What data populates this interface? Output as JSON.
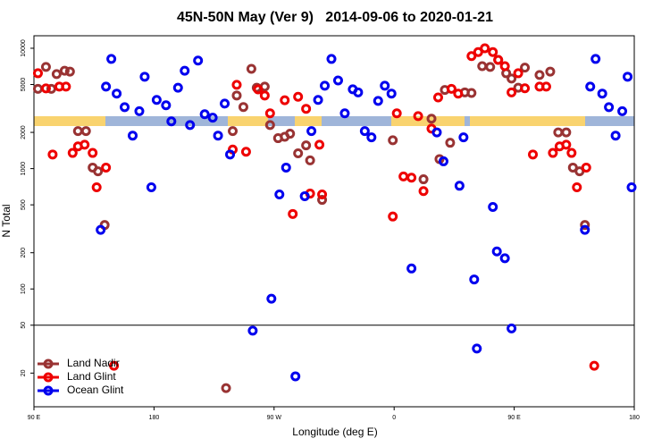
{
  "chart_data": {
    "type": "scatter",
    "title": "45N-50N May (Ver 9)   2014-09-06 to 2020-01-21",
    "xlabel": "Longitude (deg E)",
    "ylabel": "N Total",
    "xlim": [
      90,
      540
    ],
    "ylim": [
      10.5,
      12700
    ],
    "yscale": "log",
    "xticks": [
      {
        "value": 90,
        "label": "90 E"
      },
      180,
      {
        "value": 270,
        "label": "90 W"
      },
      {
        "value": 360,
        "label": "0"
      },
      {
        "value": 450,
        "label": "90 E"
      },
      {
        "value": 540,
        "label": "180"
      }
    ],
    "yticks": [
      20,
      50,
      100,
      200,
      500,
      1000,
      2000,
      5000,
      10000
    ],
    "hline": 50,
    "legend": "lower left",
    "series": [
      {
        "name": "Land Nadir",
        "color": "#993333",
        "x": [
          93,
          99,
          103,
          107,
          113,
          117,
          123,
          129,
          134,
          138,
          143,
          234,
          239,
          242,
          247,
          253,
          257,
          263,
          267,
          273,
          278,
          282,
          288,
          294,
          297,
          306,
          359,
          382,
          388,
          394,
          398,
          402,
          413,
          418,
          426,
          432,
          438,
          444,
          448,
          453,
          458,
          469,
          477,
          483,
          489,
          494,
          499,
          503
        ],
        "values": [
          4600,
          7000,
          4600,
          6100,
          6500,
          6400,
          2050,
          2050,
          1020,
          950,
          340,
          15,
          2050,
          4050,
          3250,
          6750,
          4700,
          4800,
          2300,
          1790,
          1840,
          1950,
          1340,
          1560,
          1170,
          550,
          1720,
          815,
          2600,
          1200,
          4500,
          1640,
          4300,
          4250,
          7100,
          7000,
          8000,
          6200,
          5600,
          4700,
          6900,
          6000,
          6400,
          2000,
          2000,
          1020,
          950,
          340
        ]
      },
      {
        "name": "Land Glint",
        "color": "#ee0000",
        "x": [
          93,
          99,
          104,
          109,
          114,
          119,
          123,
          128,
          134,
          137,
          144,
          150,
          239,
          242,
          249,
          258,
          263,
          267,
          278,
          284,
          288,
          294,
          297,
          304,
          306,
          359,
          362,
          367,
          373,
          378,
          382,
          388,
          393,
          403,
          408,
          418,
          423,
          428,
          434,
          438,
          443,
          448,
          453,
          458,
          464,
          469,
          474,
          479,
          484,
          489,
          493,
          497,
          504,
          510
        ],
        "values": [
          6200,
          4640,
          1310,
          4800,
          4800,
          1350,
          1530,
          1580,
          1350,
          700,
          1020,
          23,
          1440,
          4970,
          1380,
          4550,
          4050,
          2880,
          3700,
          420,
          3950,
          3140,
          620,
          1580,
          610,
          400,
          2880,
          860,
          840,
          2730,
          650,
          2150,
          3900,
          4600,
          4200,
          8600,
          9300,
          10000,
          9300,
          8000,
          7100,
          4300,
          6200,
          4650,
          1310,
          4800,
          4800,
          1350,
          1530,
          1580,
          1350,
          700,
          1020,
          23
        ]
      },
      {
        "name": "Ocean Glint",
        "color": "#0000ee",
        "x": [
          140,
          144,
          148,
          152,
          158,
          164,
          169,
          173,
          178,
          182,
          189,
          193,
          198,
          203,
          207,
          213,
          218,
          224,
          228,
          233,
          237,
          254,
          268,
          274,
          279,
          286,
          293,
          298,
          303,
          308,
          313,
          318,
          323,
          329,
          333,
          338,
          343,
          348,
          353,
          358,
          373,
          392,
          397,
          409,
          412,
          420,
          422,
          434,
          437,
          443,
          448,
          503,
          507,
          511,
          516,
          521,
          526,
          531,
          535,
          538
        ],
        "values": [
          310,
          4800,
          8150,
          4200,
          3240,
          1880,
          3000,
          5800,
          700,
          3720,
          3360,
          2470,
          4700,
          6500,
          2300,
          7900,
          2830,
          2650,
          1880,
          3470,
          1310,
          45,
          83,
          610,
          1020,
          18.8,
          590,
          2050,
          3720,
          4880,
          8150,
          5400,
          2880,
          4560,
          4300,
          2050,
          1820,
          3650,
          4880,
          4200,
          148,
          2000,
          1150,
          720,
          1820,
          120,
          32,
          480,
          205,
          180,
          47,
          310,
          4800,
          8150,
          4200,
          3240,
          1880,
          3000,
          5800,
          700
        ]
      }
    ]
  }
}
